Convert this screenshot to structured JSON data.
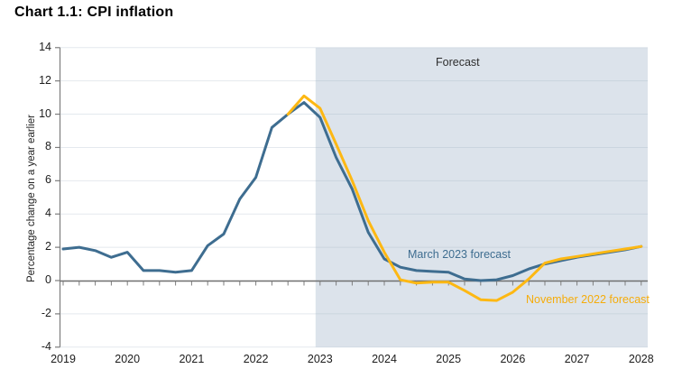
{
  "title": "Chart 1.1: CPI inflation",
  "labels": {
    "forecast": "Forecast",
    "march_series": "March 2023 forecast",
    "november_series": "November 2022 forecast"
  },
  "colors": {
    "march_line": "#3e6d90",
    "november_line": "#fdb813",
    "forecast_shade": "#dce3eb",
    "axis_gray": "#7d7d7d",
    "text_dark": "#1c1c1c"
  },
  "chart_data": {
    "type": "line",
    "title": "Chart 1.1: CPI inflation",
    "xlabel": "",
    "ylabel": "Percentage change on a year earlier",
    "ylim": [
      -4,
      14
    ],
    "ytick_step": 2,
    "x_start": 2019.0,
    "x_end": 2028.0,
    "x_step": 0.25,
    "x_unit": "quarterly, decimal years",
    "x_tick_labels": [
      "2019",
      "2020",
      "2021",
      "2022",
      "2023",
      "2024",
      "2025",
      "2026",
      "2027",
      "2028"
    ],
    "y_tick_labels": [
      "-4",
      "-2",
      "0",
      "2",
      "4",
      "6",
      "8",
      "10",
      "12",
      "14"
    ],
    "grid": "faint horizontal gridlines at each y tick",
    "legend_position": "inline annotations on lines",
    "forecast_region_start": 2022.93,
    "forecast_region_label": "Forecast",
    "series": [
      {
        "name": "March 2023 forecast",
        "color": "#3e6d90",
        "x_start": 2019.0,
        "values": [
          1.9,
          2.0,
          1.8,
          1.4,
          1.7,
          0.6,
          0.6,
          0.5,
          0.6,
          2.1,
          2.8,
          4.9,
          6.2,
          9.2,
          10.0,
          10.7,
          9.8,
          7.4,
          5.5,
          2.9,
          1.3,
          0.8,
          0.6,
          0.55,
          0.5,
          0.1,
          0.0,
          0.05,
          0.3,
          0.7,
          1.0,
          1.2,
          1.4,
          1.55,
          1.7,
          1.85,
          2.05
        ]
      },
      {
        "name": "November 2022 forecast",
        "color": "#fdb813",
        "x_start": 2022.5,
        "values": [
          10.0,
          11.1,
          10.35,
          8.2,
          6.0,
          3.6,
          1.7,
          0.05,
          -0.15,
          -0.1,
          -0.1,
          -0.6,
          -1.15,
          -1.2,
          -0.7,
          0.1,
          1.05,
          1.3,
          1.45,
          1.6,
          1.75,
          1.9,
          2.05
        ]
      }
    ]
  }
}
